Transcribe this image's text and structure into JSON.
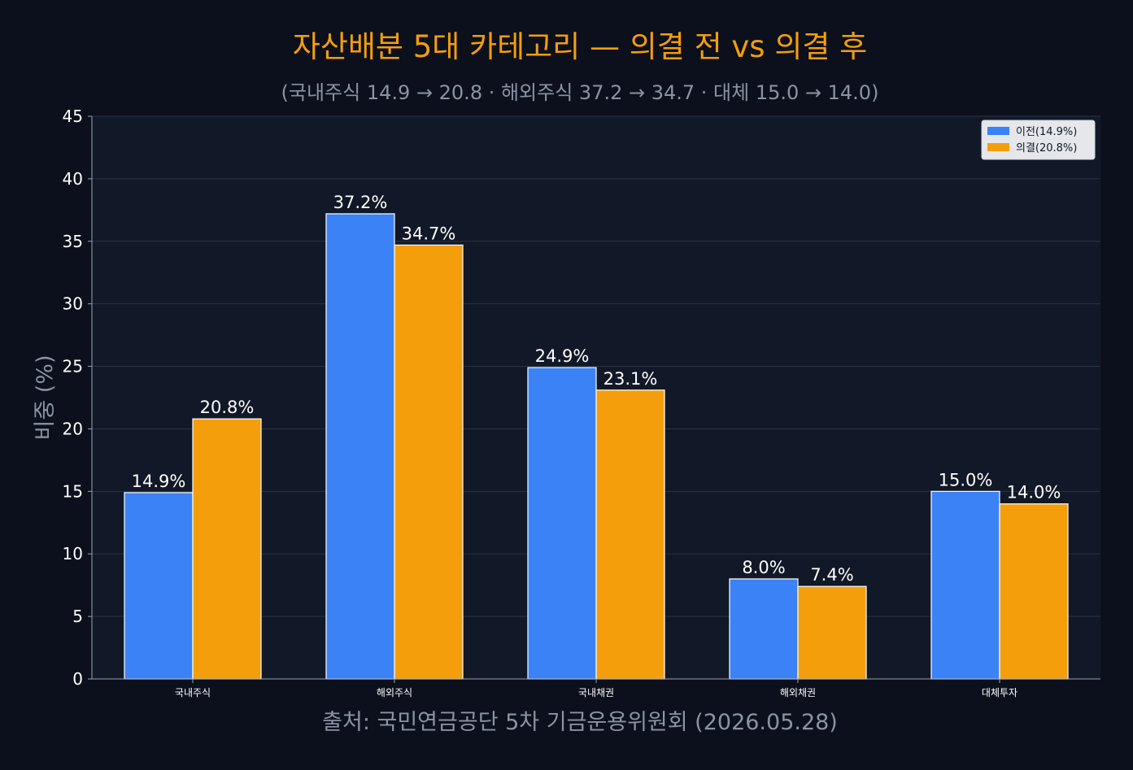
{
  "colors": {
    "background": "#0b101c",
    "plot_background": "#111827",
    "grid": "#2a3444",
    "axis": "#9aa3b2",
    "title": "#f59e0b",
    "subtitle": "#8b93a3",
    "tick_label": "#ffffff",
    "value_label": "#ffffff",
    "series_before": "#3b82f6",
    "series_after": "#f59e0b",
    "legend_bg": "#e5e7eb",
    "legend_text": "#111827"
  },
  "chart_data": {
    "type": "bar",
    "title": "자산배분 5대 카테고리 — 의결 전 vs 의결 후",
    "subtitle": "(국내주식 14.9 → 20.8 · 해외주식 37.2 → 34.7 · 대체 15.0 → 14.0)",
    "xlabel": "출처: 국민연금공단 5차 기금운용위원회 (2026.05.28)",
    "ylabel": "비중 (%)",
    "categories": [
      "국내주식",
      "해외주식",
      "국내채권",
      "해외채권",
      "대체투자"
    ],
    "series": [
      {
        "name": "이전(14.9%)",
        "color": "#3b82f6",
        "values": [
          14.9,
          37.2,
          24.9,
          8.0,
          15.0
        ],
        "labels": [
          "14.9%",
          "37.2%",
          "24.9%",
          "8.0%",
          "15.0%"
        ]
      },
      {
        "name": "의결(20.8%)",
        "color": "#f59e0b",
        "values": [
          20.8,
          34.7,
          23.1,
          7.4,
          14.0
        ],
        "labels": [
          "20.8%",
          "34.7%",
          "23.1%",
          "7.4%",
          "14.0%"
        ]
      }
    ],
    "ylim": [
      0,
      45
    ],
    "yticks": [
      0,
      5,
      10,
      15,
      20,
      25,
      30,
      35,
      40,
      45
    ],
    "grid": true,
    "legend_position": "top-right"
  }
}
